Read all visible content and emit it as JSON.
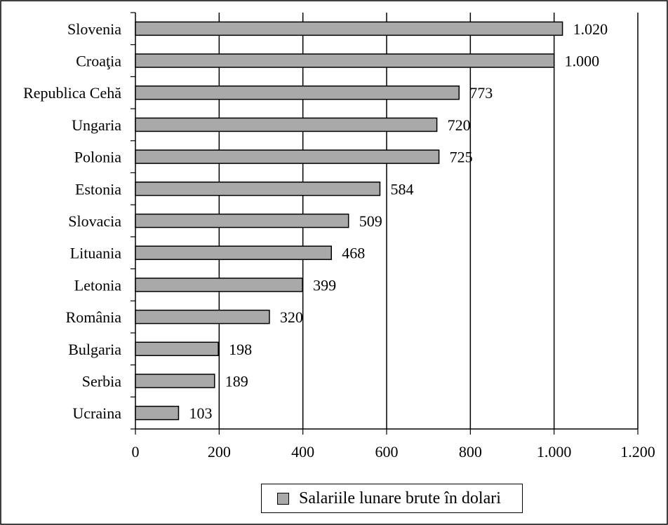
{
  "chart_data": {
    "type": "bar",
    "orientation": "horizontal",
    "categories": [
      "Slovenia",
      "Croaţia",
      "Republica Cehă",
      "Ungaria",
      "Polonia",
      "Estonia",
      "Slovacia",
      "Lituania",
      "Letonia",
      "România",
      "Bulgaria",
      "Serbia",
      "Ucraina"
    ],
    "values": [
      1020,
      1000,
      773,
      720,
      725,
      584,
      509,
      468,
      399,
      320,
      198,
      189,
      103
    ],
    "value_labels": [
      "1.020",
      "1.000",
      "773",
      "720",
      "725",
      "584",
      "509",
      "468",
      "399",
      "320",
      "198",
      "189",
      "103"
    ],
    "xlim": [
      0,
      1200
    ],
    "x_ticks": [
      0,
      200,
      400,
      600,
      800,
      1000,
      1200
    ],
    "x_tick_labels": [
      "0",
      "200",
      "400",
      "600",
      "800",
      "1.000",
      "1.200"
    ],
    "grid": true,
    "legend": {
      "position": "bottom",
      "entries": [
        "Salariile lunare brute în dolari"
      ]
    },
    "colors": {
      "bar": "#a9a9a9",
      "stroke": "#000000"
    }
  }
}
